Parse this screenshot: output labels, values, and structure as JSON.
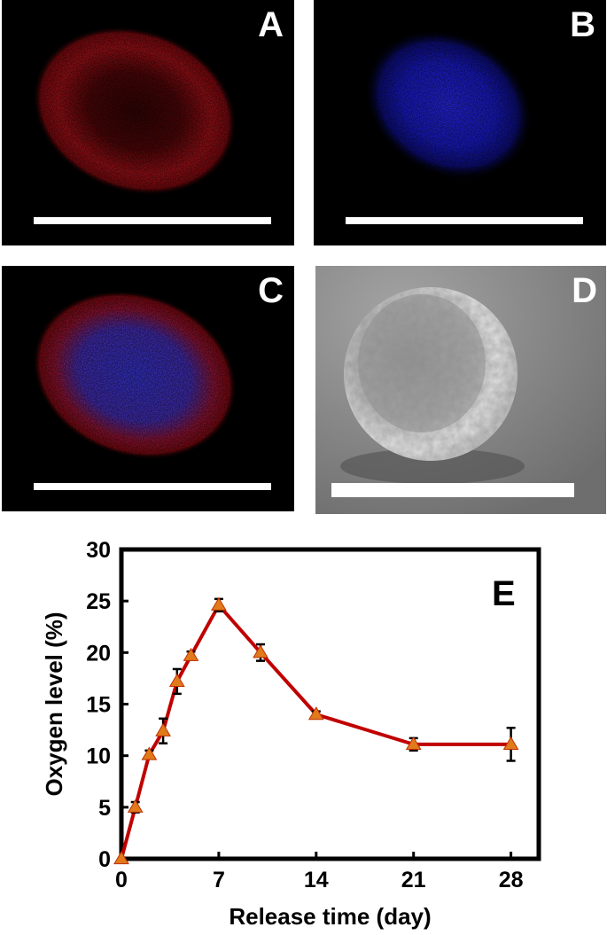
{
  "panels": {
    "a": {
      "label": "A",
      "stain_color": "#c0141a"
    },
    "b": {
      "label": "B",
      "stain_color": "#2222ee"
    },
    "c": {
      "label": "C",
      "stain_colors": [
        "#c0141a",
        "#3a38d8"
      ]
    },
    "d": {
      "label": "D"
    }
  },
  "chart_data": {
    "type": "line",
    "panel_label": "E",
    "xlabel": "Release time (day)",
    "ylabel": "Oxygen level (%)",
    "xlim": [
      0,
      30
    ],
    "ylim": [
      0,
      30
    ],
    "xticks": [
      0,
      7,
      14,
      21,
      28
    ],
    "yticks": [
      0,
      5,
      10,
      15,
      20,
      25,
      30
    ],
    "grid": false,
    "series": [
      {
        "x": [
          0,
          1,
          2,
          3,
          4,
          5,
          7,
          10,
          14,
          21,
          28
        ],
        "y": [
          0,
          5.0,
          10.1,
          12.4,
          17.2,
          19.7,
          24.6,
          20.0,
          14.0,
          11.1,
          11.1
        ],
        "error": [
          0,
          0.5,
          0.4,
          1.2,
          1.2,
          0.4,
          0.6,
          0.8,
          0.3,
          0.6,
          1.6
        ],
        "line_color": "#c00000",
        "marker_color": "#e07a1a",
        "marker": "triangle"
      }
    ]
  }
}
